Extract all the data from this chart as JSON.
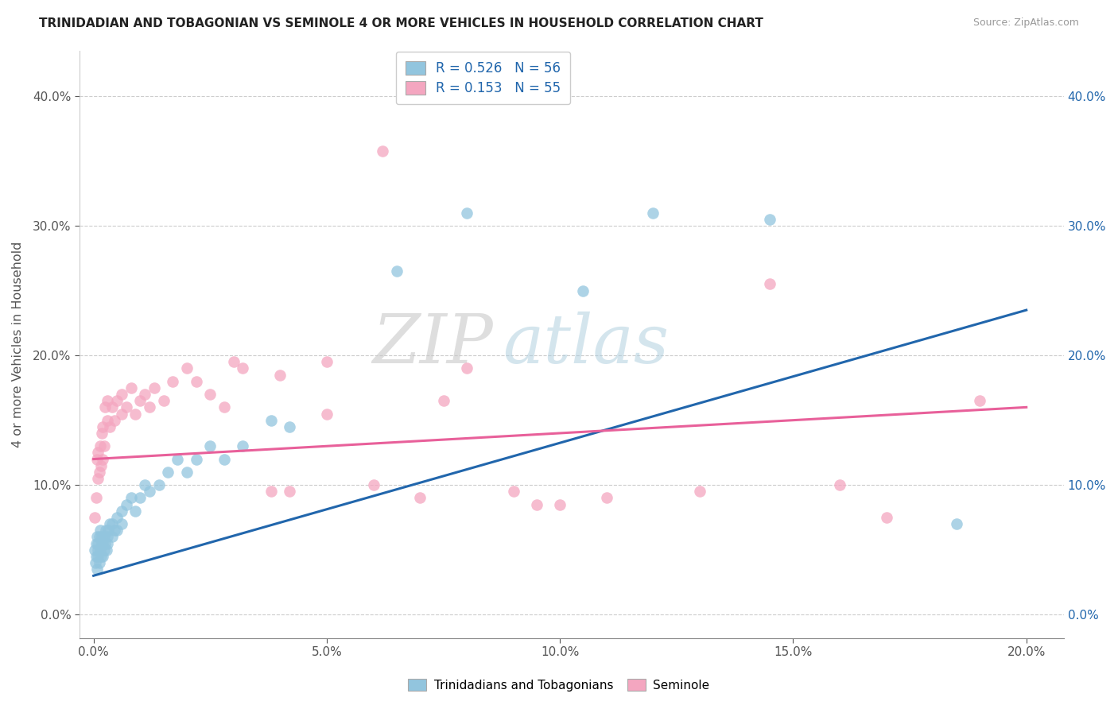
{
  "title": "TRINIDADIAN AND TOBAGONIAN VS SEMINOLE 4 OR MORE VEHICLES IN HOUSEHOLD CORRELATION CHART",
  "source": "Source: ZipAtlas.com",
  "xlabel_ticks": [
    "0.0%",
    "5.0%",
    "10.0%",
    "15.0%",
    "20.0%"
  ],
  "ylabel_ticks": [
    "0.0%",
    "10.0%",
    "20.0%",
    "30.0%",
    "40.0%"
  ],
  "xlabel_vals": [
    0.0,
    0.05,
    0.1,
    0.15,
    0.2
  ],
  "ylabel_vals": [
    0.0,
    0.1,
    0.2,
    0.3,
    0.4
  ],
  "xlim": [
    -0.003,
    0.208
  ],
  "ylim": [
    -0.018,
    0.435
  ],
  "legend1_text": "R = 0.526   N = 56",
  "legend2_text": "R = 0.153   N = 55",
  "legend_label1": "Trinidadians and Tobagonians",
  "legend_label2": "Seminole",
  "color_blue": "#92c5de",
  "color_pink": "#f4a6c0",
  "line_color_blue": "#2166ac",
  "line_color_pink": "#e8609a",
  "watermark_zip": "ZIP",
  "watermark_atlas": "atlas",
  "blue_line_x0": 0.0,
  "blue_line_y0": 0.03,
  "blue_line_x1": 0.2,
  "blue_line_y1": 0.235,
  "pink_line_x0": 0.0,
  "pink_line_y0": 0.12,
  "pink_line_x1": 0.2,
  "pink_line_y1": 0.16,
  "blue_scatter_x": [
    0.0002,
    0.0004,
    0.0005,
    0.0006,
    0.0007,
    0.0008,
    0.0009,
    0.001,
    0.001,
    0.0012,
    0.0013,
    0.0014,
    0.0015,
    0.0016,
    0.0017,
    0.0018,
    0.002,
    0.002,
    0.0022,
    0.0023,
    0.0025,
    0.0026,
    0.0028,
    0.003,
    0.003,
    0.0032,
    0.0035,
    0.004,
    0.004,
    0.0045,
    0.005,
    0.005,
    0.006,
    0.006,
    0.007,
    0.008,
    0.009,
    0.01,
    0.011,
    0.012,
    0.014,
    0.016,
    0.018,
    0.02,
    0.022,
    0.025,
    0.028,
    0.032,
    0.038,
    0.042,
    0.065,
    0.08,
    0.105,
    0.12,
    0.145,
    0.185
  ],
  "blue_scatter_y": [
    0.05,
    0.04,
    0.055,
    0.045,
    0.06,
    0.035,
    0.05,
    0.055,
    0.045,
    0.06,
    0.04,
    0.065,
    0.05,
    0.045,
    0.055,
    0.06,
    0.055,
    0.045,
    0.06,
    0.05,
    0.055,
    0.065,
    0.05,
    0.06,
    0.055,
    0.065,
    0.07,
    0.06,
    0.07,
    0.065,
    0.075,
    0.065,
    0.08,
    0.07,
    0.085,
    0.09,
    0.08,
    0.09,
    0.1,
    0.095,
    0.1,
    0.11,
    0.12,
    0.11,
    0.12,
    0.13,
    0.12,
    0.13,
    0.15,
    0.145,
    0.265,
    0.31,
    0.25,
    0.31,
    0.305,
    0.07
  ],
  "pink_scatter_x": [
    0.0003,
    0.0005,
    0.0007,
    0.0009,
    0.001,
    0.0012,
    0.0014,
    0.0016,
    0.0018,
    0.002,
    0.002,
    0.0022,
    0.0025,
    0.003,
    0.003,
    0.0035,
    0.004,
    0.0045,
    0.005,
    0.006,
    0.006,
    0.007,
    0.008,
    0.009,
    0.01,
    0.011,
    0.012,
    0.013,
    0.015,
    0.017,
    0.02,
    0.022,
    0.025,
    0.028,
    0.032,
    0.038,
    0.042,
    0.05,
    0.06,
    0.07,
    0.075,
    0.08,
    0.09,
    0.095,
    0.1,
    0.11,
    0.13,
    0.145,
    0.16,
    0.17,
    0.03,
    0.04,
    0.05,
    0.19,
    0.062
  ],
  "pink_scatter_y": [
    0.075,
    0.09,
    0.12,
    0.105,
    0.125,
    0.11,
    0.13,
    0.115,
    0.14,
    0.12,
    0.145,
    0.13,
    0.16,
    0.15,
    0.165,
    0.145,
    0.16,
    0.15,
    0.165,
    0.155,
    0.17,
    0.16,
    0.175,
    0.155,
    0.165,
    0.17,
    0.16,
    0.175,
    0.165,
    0.18,
    0.19,
    0.18,
    0.17,
    0.16,
    0.19,
    0.095,
    0.095,
    0.155,
    0.1,
    0.09,
    0.165,
    0.19,
    0.095,
    0.085,
    0.085,
    0.09,
    0.095,
    0.255,
    0.1,
    0.075,
    0.195,
    0.185,
    0.195,
    0.165,
    0.358
  ]
}
